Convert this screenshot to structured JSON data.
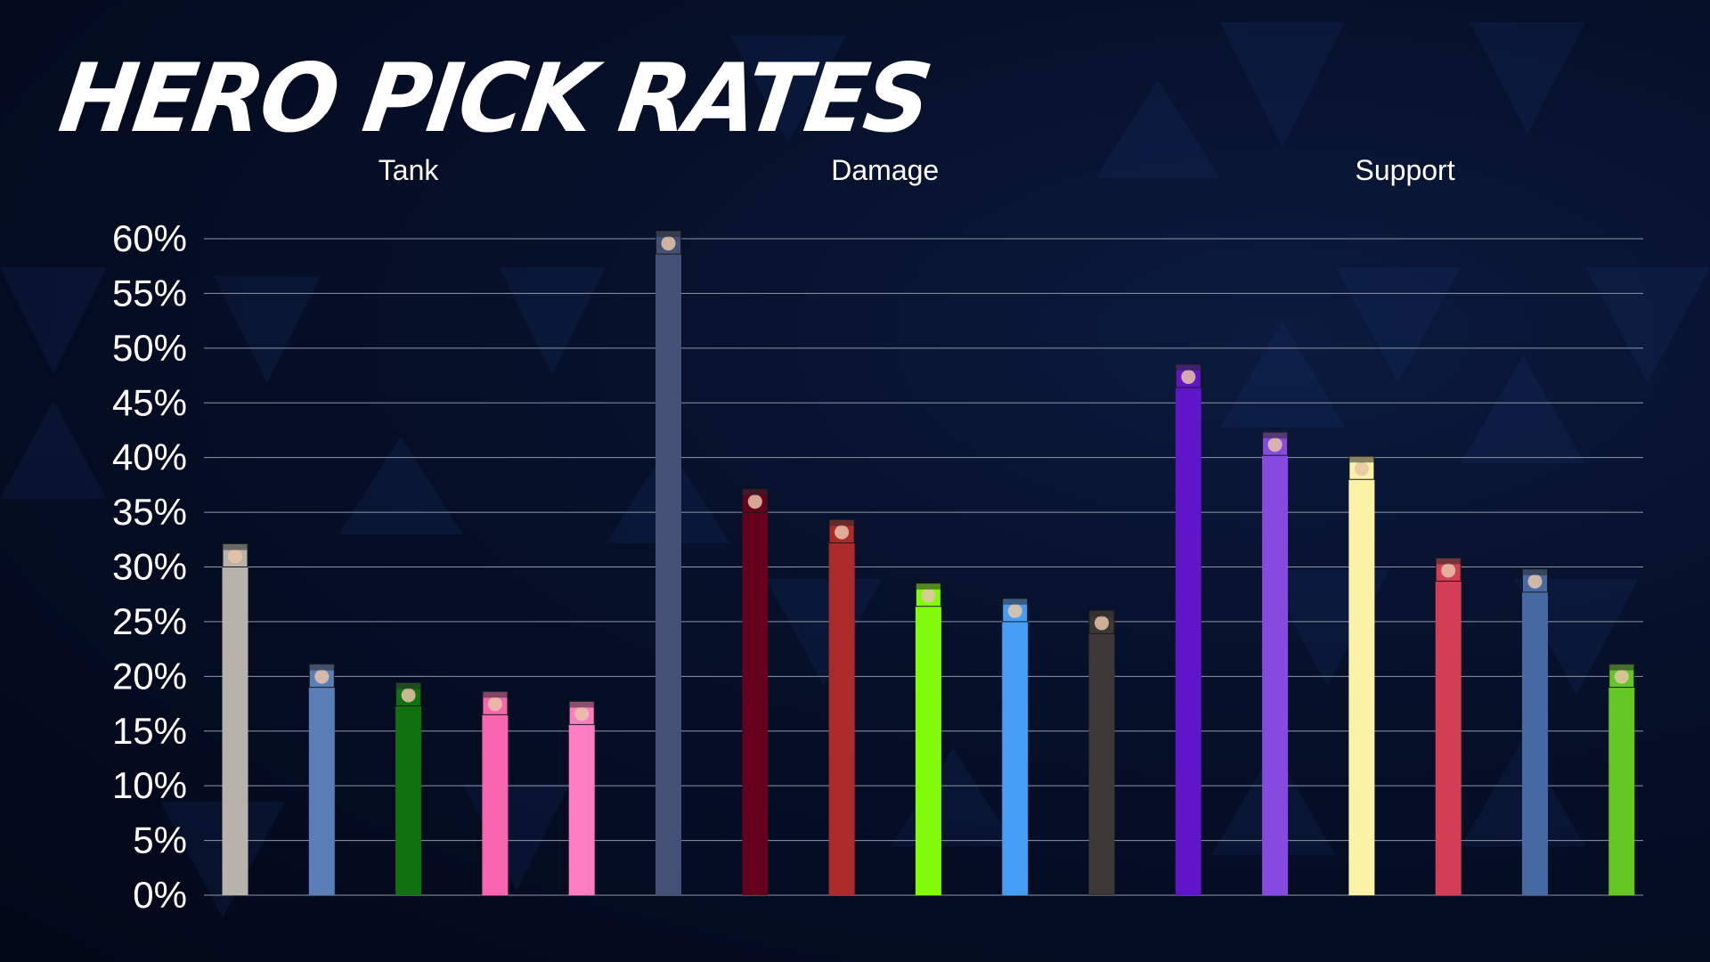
{
  "title": "HERO PICK RATES",
  "colors": {
    "grid": "#8e96a8",
    "text": "#ffffff"
  },
  "chart_data": {
    "type": "bar",
    "title": "HERO PICK RATES",
    "xlabel": "",
    "ylabel": "",
    "ylim": [
      0,
      60
    ],
    "yticks": [
      "0%",
      "5%",
      "10%",
      "15%",
      "20%",
      "25%",
      "30%",
      "35%",
      "40%",
      "45%",
      "50%",
      "55%",
      "60%"
    ],
    "grid": true,
    "legend": "none",
    "groups": [
      {
        "name": "Tank",
        "bars": [
          {
            "value": 30,
            "color": "#b8b3aa",
            "icon": "reinhardt-portrait-icon"
          },
          {
            "value": 19,
            "color": "#5c7eb8",
            "icon": "orisa-portrait-icon"
          },
          {
            "value": 17.3,
            "color": "#10710f",
            "icon": "wrecking-ball-portrait-icon"
          },
          {
            "value": 16.5,
            "color": "#f665ad",
            "icon": "dva-portrait-icon"
          },
          {
            "value": 15.6,
            "color": "#fe7dc0",
            "icon": "zarya-portrait-icon"
          }
        ]
      },
      {
        "name": "Damage",
        "bars": [
          {
            "value": 58.6,
            "color": "#445076",
            "icon": "widowmaker-portrait-icon"
          },
          {
            "value": 35,
            "color": "#64001c",
            "icon": "reaper-portrait-icon"
          },
          {
            "value": 32.2,
            "color": "#ad2a2b",
            "icon": "mccree-portrait-icon"
          },
          {
            "value": 26.4,
            "color": "#82fa0b",
            "icon": "genji-portrait-icon"
          },
          {
            "value": 25,
            "color": "#459ef3",
            "icon": "tracer-portrait-icon"
          },
          {
            "value": 23.9,
            "color": "#3b3836",
            "icon": "ashe-portrait-icon"
          }
        ]
      },
      {
        "name": "Support",
        "bars": [
          {
            "value": 46.4,
            "color": "#5e16c7",
            "icon": "ana-portrait-icon"
          },
          {
            "value": 40.2,
            "color": "#854ade",
            "icon": "moira-portrait-icon"
          },
          {
            "value": 38,
            "color": "#fcf2a7",
            "icon": "mercy-portrait-icon"
          },
          {
            "value": 28.7,
            "color": "#d23e53",
            "icon": "baptiste-portrait-icon"
          },
          {
            "value": 27.7,
            "color": "#4669a1",
            "icon": "zenyatta-portrait-icon"
          },
          {
            "value": 19,
            "color": "#65c725",
            "icon": "lucio-portrait-icon"
          }
        ]
      }
    ]
  }
}
